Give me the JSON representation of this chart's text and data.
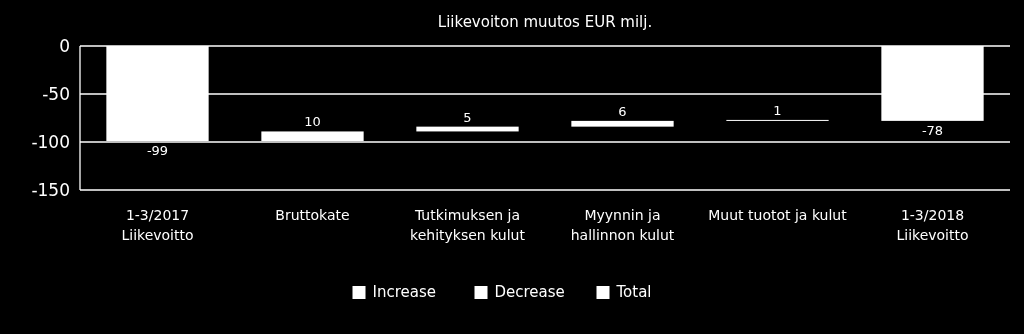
{
  "chart_data": {
    "type": "bar",
    "title": "Liikevoiton muutos EUR milj.",
    "categories": [
      "1-3/2017\nLiikevoitto",
      "Bruttokate",
      "Tutkimuksen ja\nkehityksen kulut",
      "Myynnin ja\nhallinnon kulut",
      "Muut tuotot ja kulut",
      "1-3/2018\nLiikevoitto"
    ],
    "series": [
      {
        "name": "Increase",
        "color": "#ffffff",
        "values": [
          null,
          10,
          5,
          6,
          1,
          null
        ],
        "base": [
          null,
          -99,
          -89,
          -84,
          -78,
          null
        ]
      },
      {
        "name": "Decrease",
        "color": "#ffffff",
        "values": [
          null,
          null,
          null,
          null,
          null,
          null
        ]
      },
      {
        "name": "Total",
        "color": "#ffffff",
        "values": [
          -99,
          null,
          null,
          null,
          null,
          -78
        ]
      }
    ],
    "ylim": [
      -150,
      0
    ],
    "yticks": [
      -150,
      -100,
      -50,
      0
    ],
    "grid": "y",
    "data_labels": true,
    "legend": "bottom"
  }
}
